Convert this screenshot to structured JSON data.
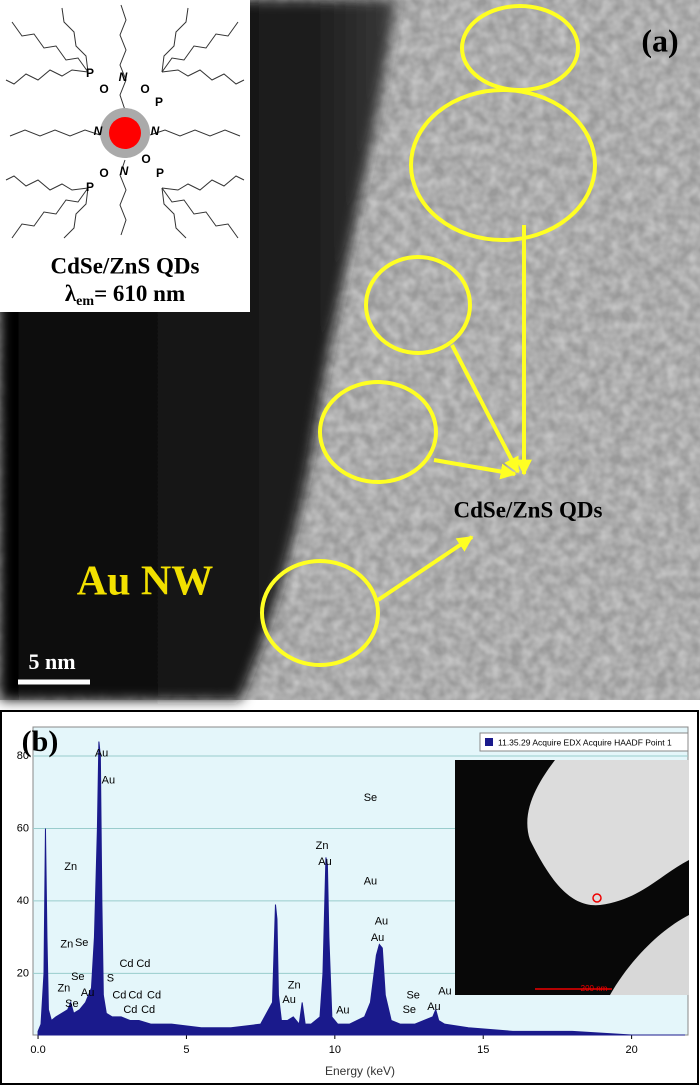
{
  "panel_a": {
    "label": "(a)",
    "inset_title": "CdSe/ZnS QDs",
    "inset_emission": {
      "symbol": "λ",
      "subscript": "em",
      "text": "= 610 nm"
    },
    "ligand_atoms": [
      "P",
      "O",
      "N",
      "O",
      "P",
      "N",
      "N",
      "O",
      "P",
      "N",
      "O",
      "P"
    ],
    "annotation": "CdSe/ZnS QDs",
    "region_label": "Au NW",
    "scale_bar": "5 nm"
  },
  "chart_data": {
    "type": "area",
    "label": "(b)",
    "x_label": "Energy (keV)",
    "legend": "11.35.29 Acquire EDX Acquire HAADF Point 1",
    "color": "#1a1a8c",
    "inset_scale_bar": "200 nm",
    "xlim": [
      -0.17,
      21.9
    ],
    "ylim": [
      3,
      88
    ],
    "xticks": [
      {
        "value": 0,
        "label": "0.0"
      },
      5,
      10,
      15,
      20
    ],
    "yticks": [
      20,
      40,
      60,
      80
    ],
    "grid": true,
    "x": [
      0,
      0.1,
      0.2,
      0.25,
      0.3,
      0.35,
      0.45,
      0.6,
      0.8,
      1.0,
      1.1,
      1.2,
      1.4,
      1.6,
      1.8,
      1.9,
      2.0,
      2.05,
      2.1,
      2.15,
      2.2,
      2.3,
      2.5,
      2.8,
      3.1,
      3.4,
      3.8,
      4.5,
      5.5,
      6.5,
      7.5,
      7.9,
      8.0,
      8.05,
      8.1,
      8.2,
      8.4,
      8.6,
      8.8,
      8.9,
      9.0,
      9.2,
      9.5,
      9.6,
      9.7,
      9.75,
      9.8,
      9.9,
      10.1,
      10.5,
      11.0,
      11.2,
      11.4,
      11.5,
      11.6,
      11.7,
      11.9,
      12.2,
      12.7,
      13.3,
      13.4,
      13.5,
      13.7,
      14.5,
      16,
      18,
      20,
      21.8
    ],
    "values": [
      4,
      6,
      20,
      60,
      30,
      10,
      7,
      8,
      9,
      10,
      12,
      9,
      10,
      12,
      16,
      30,
      60,
      84,
      80,
      40,
      14,
      9,
      8,
      8,
      7,
      7,
      6,
      6,
      5,
      5,
      6,
      12,
      39,
      35,
      14,
      7,
      7,
      8,
      6,
      12,
      6,
      6,
      8,
      20,
      52,
      50,
      30,
      8,
      6,
      6,
      8,
      12,
      25,
      28,
      27,
      14,
      7,
      6,
      6,
      8,
      10,
      7,
      6,
      5,
      4,
      4,
      3,
      3
    ],
    "annotations": [
      {
        "text": "Au",
        "x": 2.14,
        "y": 80.7
      },
      {
        "text": "Au",
        "x": 2.37,
        "y": 73.2
      },
      {
        "text": "Se",
        "x": 11.2,
        "y": 68.4
      },
      {
        "text": "Zn",
        "x": 1.1,
        "y": 49.3
      },
      {
        "text": "Zn",
        "x": 9.57,
        "y": 55.2
      },
      {
        "text": "Au",
        "x": 9.67,
        "y": 50.7
      },
      {
        "text": "Au",
        "x": 11.2,
        "y": 45.3
      },
      {
        "text": "Zn",
        "x": 0.97,
        "y": 27.9
      },
      {
        "text": "Se",
        "x": 1.47,
        "y": 28.4
      },
      {
        "text": "Cd",
        "x": 2.98,
        "y": 22.5
      },
      {
        "text": "Cd",
        "x": 3.55,
        "y": 22.5
      },
      {
        "text": "Au",
        "x": 11.57,
        "y": 34.3
      },
      {
        "text": "Au",
        "x": 11.44,
        "y": 29.8
      },
      {
        "text": "Se",
        "x": 1.34,
        "y": 19.0
      },
      {
        "text": "S",
        "x": 2.44,
        "y": 18.5
      },
      {
        "text": "Zn",
        "x": 0.87,
        "y": 15.8
      },
      {
        "text": "Au",
        "x": 1.67,
        "y": 14.5
      },
      {
        "text": "Se",
        "x": 1.14,
        "y": 11.5
      },
      {
        "text": "Cd",
        "x": 2.74,
        "y": 13.9
      },
      {
        "text": "Cd",
        "x": 3.28,
        "y": 13.9
      },
      {
        "text": "Cd",
        "x": 3.91,
        "y": 13.9
      },
      {
        "text": "Cd",
        "x": 3.11,
        "y": 9.9
      },
      {
        "text": "Cd",
        "x": 3.71,
        "y": 9.9
      },
      {
        "text": "Zn",
        "x": 8.63,
        "y": 16.6
      },
      {
        "text": "Au",
        "x": 8.46,
        "y": 12.6
      },
      {
        "text": "Au",
        "x": 10.27,
        "y": 9.7
      },
      {
        "text": "Se",
        "x": 12.64,
        "y": 13.9
      },
      {
        "text": "Se",
        "x": 12.51,
        "y": 9.9
      },
      {
        "text": "Au",
        "x": 13.71,
        "y": 15
      },
      {
        "text": "Au",
        "x": 13.34,
        "y": 10.7
      }
    ]
  }
}
